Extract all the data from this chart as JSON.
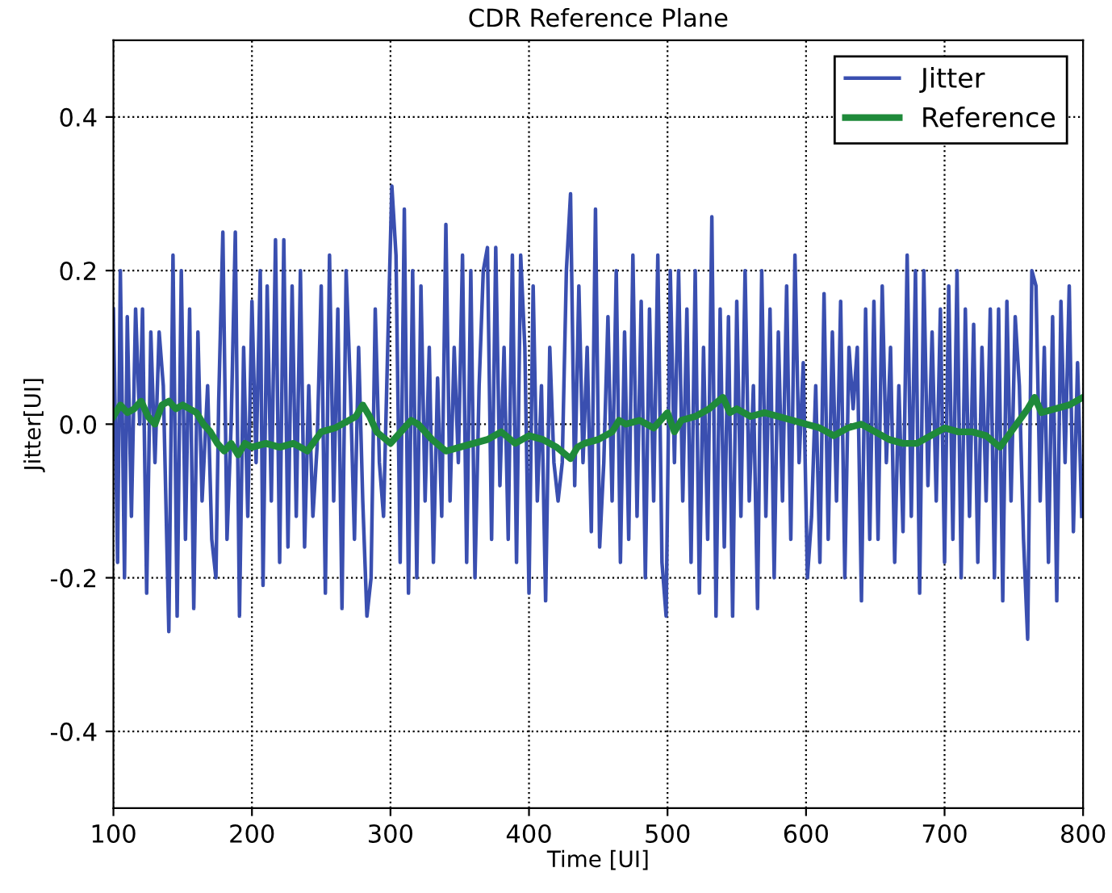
{
  "chart_data": {
    "type": "line",
    "title": "CDR Reference Plane",
    "xlabel": "Time [UI]",
    "ylabel": "Jitter[UI]",
    "xlim": [
      100,
      800
    ],
    "xticks": [
      100,
      200,
      300,
      400,
      500,
      600,
      700,
      800
    ],
    "ylim": [
      -0.5,
      0.5
    ],
    "yticks": [
      -0.4,
      -0.2,
      {
        "value": 0,
        "label": "0.0"
      },
      0.2,
      0.4
    ],
    "grid": true,
    "legend": "top right",
    "series": [
      {
        "name": "Jitter",
        "color": "#3a4fb0",
        "x": [
          100,
          103,
          105,
          108,
          110,
          113,
          116,
          119,
          121,
          124,
          127,
          130,
          133,
          136,
          140,
          143,
          146,
          149,
          152,
          155,
          158,
          161,
          164,
          168,
          171,
          174,
          176,
          179,
          182,
          185,
          188,
          191,
          194,
          197,
          200,
          203,
          206,
          208,
          211,
          214,
          217,
          220,
          223,
          226,
          229,
          232,
          235,
          238,
          241,
          244,
          247,
          250,
          253,
          256,
          259,
          262,
          265,
          268,
          271,
          274,
          277,
          280,
          283,
          286,
          289,
          292,
          295,
          298,
          301,
          304,
          307,
          310,
          313,
          316,
          319,
          322,
          325,
          328,
          331,
          334,
          337,
          340,
          343,
          346,
          349,
          352,
          355,
          358,
          361,
          364,
          367,
          370,
          373,
          376,
          379,
          382,
          385,
          388,
          391,
          394,
          397,
          400,
          403,
          406,
          409,
          412,
          415,
          418,
          421,
          424,
          427,
          430,
          433,
          436,
          439,
          442,
          445,
          448,
          451,
          454,
          457,
          460,
          463,
          466,
          469,
          472,
          475,
          478,
          481,
          484,
          487,
          490,
          493,
          496,
          499,
          502,
          505,
          508,
          511,
          514,
          517,
          520,
          523,
          526,
          529,
          532,
          535,
          538,
          541,
          544,
          547,
          550,
          553,
          556,
          559,
          562,
          565,
          568,
          571,
          574,
          577,
          580,
          583,
          586,
          589,
          592,
          595,
          598,
          601,
          604,
          607,
          610,
          613,
          616,
          619,
          622,
          625,
          628,
          631,
          634,
          637,
          640,
          643,
          646,
          649,
          652,
          655,
          658,
          661,
          664,
          667,
          670,
          673,
          676,
          679,
          682,
          685,
          688,
          691,
          694,
          697,
          700,
          703,
          706,
          709,
          712,
          715,
          718,
          721,
          724,
          727,
          730,
          733,
          736,
          739,
          742,
          745,
          748,
          751,
          754,
          757,
          760,
          763,
          766,
          769,
          772,
          775,
          778,
          781,
          784,
          787,
          790,
          793,
          796,
          799
        ],
        "values": [
          0.15,
          -0.18,
          0.2,
          -0.2,
          0.14,
          -0.12,
          0.15,
          0.0,
          0.15,
          -0.22,
          0.12,
          -0.05,
          0.12,
          0.05,
          -0.27,
          0.22,
          -0.25,
          0.2,
          -0.15,
          0.15,
          -0.24,
          0.12,
          -0.1,
          0.05,
          -0.15,
          -0.2,
          0.03,
          0.25,
          -0.15,
          0.0,
          0.25,
          -0.25,
          0.1,
          -0.12,
          0.16,
          -0.05,
          0.2,
          -0.21,
          0.18,
          -0.1,
          0.24,
          -0.18,
          0.24,
          -0.16,
          0.18,
          -0.12,
          0.2,
          -0.16,
          0.05,
          -0.12,
          -0.03,
          0.18,
          -0.22,
          0.22,
          -0.1,
          0.15,
          -0.24,
          0.2,
          0.05,
          -0.15,
          0.1,
          -0.1,
          -0.25,
          -0.2,
          0.15,
          -0.05,
          -0.12,
          0.1,
          0.31,
          0.22,
          -0.18,
          0.28,
          -0.22,
          0.2,
          -0.2,
          0.18,
          -0.1,
          0.1,
          -0.18,
          0.06,
          -0.12,
          0.26,
          -0.1,
          0.1,
          -0.05,
          0.22,
          -0.18,
          0.2,
          -0.2,
          0.05,
          0.2,
          0.23,
          -0.15,
          0.23,
          -0.08,
          0.1,
          -0.15,
          0.22,
          -0.18,
          0.22,
          0.1,
          -0.22,
          0.18,
          -0.1,
          0.05,
          -0.23,
          0.1,
          -0.05,
          -0.1,
          -0.05,
          0.2,
          0.3,
          -0.08,
          0.18,
          -0.05,
          0.1,
          -0.14,
          0.28,
          -0.16,
          -0.05,
          0.14,
          -0.1,
          0.2,
          -0.18,
          0.12,
          -0.15,
          0.22,
          -0.12,
          0.16,
          -0.2,
          0.15,
          -0.1,
          0.22,
          -0.18,
          -0.25,
          0.2,
          -0.05,
          0.2,
          -0.1,
          0.15,
          -0.18,
          0.2,
          -0.22,
          0.1,
          -0.15,
          0.27,
          -0.25,
          0.15,
          -0.16,
          0.14,
          -0.25,
          0.16,
          -0.12,
          0.2,
          -0.1,
          0.05,
          -0.24,
          0.2,
          -0.12,
          0.15,
          -0.2,
          0.12,
          -0.1,
          0.18,
          -0.15,
          0.22,
          -0.05,
          0.08,
          -0.2,
          -0.12,
          0.05,
          -0.18,
          0.17,
          -0.15,
          0.12,
          -0.1,
          0.16,
          -0.2,
          0.1,
          0.02,
          0.1,
          -0.23,
          0.15,
          -0.15,
          0.16,
          -0.15,
          0.18,
          -0.05,
          0.1,
          -0.18,
          0.05,
          -0.14,
          0.22,
          -0.12,
          0.2,
          -0.22,
          0.2,
          -0.08,
          0.12,
          -0.1,
          0.15,
          -0.18,
          0.18,
          -0.15,
          0.2,
          -0.2,
          0.15,
          -0.12,
          0.13,
          -0.18,
          0.1,
          -0.1,
          0.15,
          -0.2,
          0.15,
          -0.23,
          0.16,
          -0.1,
          0.14,
          0.05,
          -0.15,
          -0.28,
          0.2,
          0.18,
          -0.1,
          0.1,
          -0.18,
          0.14,
          -0.23,
          0.16,
          -0.05,
          0.18,
          -0.14,
          0.08,
          -0.12
        ]
      },
      {
        "name": "Reference",
        "color": "#1f8a3a",
        "x": [
          100,
          105,
          110,
          115,
          120,
          125,
          130,
          135,
          140,
          145,
          150,
          155,
          160,
          165,
          170,
          175,
          180,
          185,
          190,
          195,
          200,
          210,
          220,
          230,
          240,
          250,
          260,
          270,
          275,
          280,
          285,
          290,
          300,
          310,
          315,
          320,
          325,
          330,
          340,
          350,
          360,
          370,
          380,
          390,
          400,
          410,
          420,
          430,
          435,
          440,
          450,
          460,
          465,
          470,
          480,
          490,
          500,
          505,
          510,
          520,
          530,
          540,
          545,
          550,
          560,
          570,
          580,
          590,
          600,
          610,
          620,
          630,
          640,
          650,
          660,
          670,
          680,
          690,
          700,
          710,
          720,
          730,
          740,
          750,
          760,
          765,
          770,
          780,
          790,
          800
        ],
        "values": [
          0.01,
          0.025,
          0.015,
          0.02,
          0.03,
          0.01,
          0.0,
          0.025,
          0.03,
          0.02,
          0.025,
          0.02,
          0.015,
          0.0,
          -0.01,
          -0.025,
          -0.035,
          -0.025,
          -0.04,
          -0.025,
          -0.03,
          -0.025,
          -0.03,
          -0.025,
          -0.035,
          -0.01,
          -0.005,
          0.005,
          0.01,
          0.025,
          0.01,
          -0.01,
          -0.025,
          -0.005,
          0.005,
          0.0,
          -0.01,
          -0.02,
          -0.035,
          -0.03,
          -0.025,
          -0.02,
          -0.01,
          -0.025,
          -0.015,
          -0.02,
          -0.03,
          -0.045,
          -0.03,
          -0.025,
          -0.02,
          -0.01,
          0.005,
          0.0,
          0.005,
          -0.005,
          0.015,
          -0.01,
          0.005,
          0.01,
          0.02,
          0.035,
          0.015,
          0.02,
          0.01,
          0.015,
          0.01,
          0.005,
          0.0,
          -0.005,
          -0.015,
          -0.005,
          0.0,
          -0.01,
          -0.02,
          -0.025,
          -0.025,
          -0.015,
          -0.005,
          -0.01,
          -0.01,
          -0.015,
          -0.03,
          -0.005,
          0.02,
          0.035,
          0.015,
          0.02,
          0.025,
          0.035
        ]
      }
    ]
  }
}
